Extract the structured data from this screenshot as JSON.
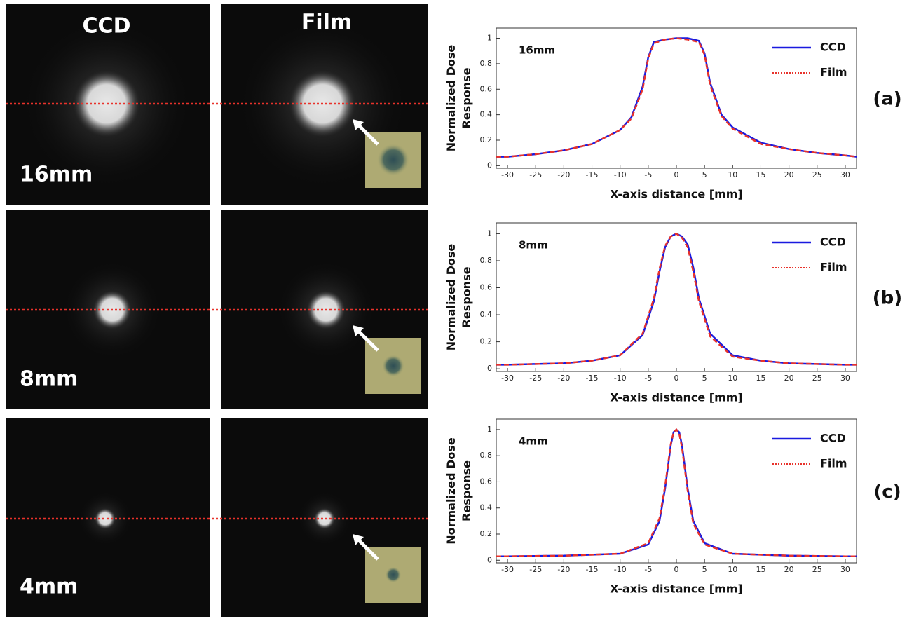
{
  "images": {
    "columns": [
      "CCD",
      "Film"
    ],
    "rows": [
      "16mm",
      "8mm",
      "4mm"
    ]
  },
  "chart_data": [
    {
      "type": "line",
      "title": "16mm",
      "panel": "(a)",
      "ylabel": [
        "Normalized Dose",
        "Response"
      ],
      "xlabel": "X-axis distance [mm]",
      "x": [
        -32,
        -30,
        -25,
        -20,
        -15,
        -10,
        -8,
        -6,
        -5,
        -4,
        -2,
        0,
        2,
        4,
        5,
        6,
        8,
        10,
        15,
        20,
        25,
        30,
        32
      ],
      "series": [
        {
          "name": "CCD",
          "color": "#1a1adf",
          "style": "solid",
          "values": [
            0.07,
            0.07,
            0.09,
            0.12,
            0.17,
            0.28,
            0.38,
            0.62,
            0.85,
            0.97,
            0.99,
            1.0,
            1.0,
            0.98,
            0.88,
            0.65,
            0.4,
            0.3,
            0.18,
            0.13,
            0.1,
            0.08,
            0.07
          ]
        },
        {
          "name": "Film",
          "color": "#e8322b",
          "style": "dashed",
          "values": [
            0.07,
            0.07,
            0.09,
            0.12,
            0.17,
            0.28,
            0.37,
            0.6,
            0.84,
            0.96,
            0.99,
            1.0,
            0.99,
            0.97,
            0.87,
            0.63,
            0.39,
            0.29,
            0.17,
            0.13,
            0.1,
            0.08,
            0.07
          ]
        }
      ],
      "xlim": [
        -32,
        32
      ],
      "xticks": [
        -30,
        -25,
        -20,
        -15,
        -10,
        -5,
        0,
        5,
        10,
        15,
        20,
        25,
        30
      ],
      "ylim": [
        -0.02,
        1.08
      ],
      "yticks": [
        0,
        0.2,
        0.4,
        0.6,
        0.8,
        1
      ],
      "legend": "upper right"
    },
    {
      "type": "line",
      "title": "8mm",
      "panel": "(b)",
      "ylabel": [
        "Normalized Dose",
        "Response"
      ],
      "xlabel": "X-axis distance [mm]",
      "x": [
        -32,
        -30,
        -25,
        -20,
        -15,
        -10,
        -6,
        -4,
        -3,
        -2,
        -1,
        0,
        1,
        2,
        3,
        4,
        6,
        10,
        15,
        20,
        25,
        30,
        32
      ],
      "series": [
        {
          "name": "CCD",
          "color": "#1a1adf",
          "style": "solid",
          "values": [
            0.03,
            0.03,
            0.035,
            0.04,
            0.06,
            0.1,
            0.25,
            0.5,
            0.72,
            0.9,
            0.98,
            1.0,
            0.98,
            0.92,
            0.75,
            0.52,
            0.26,
            0.1,
            0.06,
            0.04,
            0.035,
            0.03,
            0.03
          ]
        },
        {
          "name": "Film",
          "color": "#e8322b",
          "style": "dashed",
          "values": [
            0.03,
            0.03,
            0.035,
            0.04,
            0.06,
            0.1,
            0.26,
            0.52,
            0.74,
            0.91,
            0.98,
            1.0,
            0.97,
            0.9,
            0.72,
            0.5,
            0.24,
            0.09,
            0.06,
            0.04,
            0.035,
            0.03,
            0.03
          ]
        }
      ],
      "xlim": [
        -32,
        32
      ],
      "xticks": [
        -30,
        -25,
        -20,
        -15,
        -10,
        -5,
        0,
        5,
        10,
        15,
        20,
        25,
        30
      ],
      "ylim": [
        -0.02,
        1.08
      ],
      "yticks": [
        0,
        0.2,
        0.4,
        0.6,
        0.8,
        1
      ],
      "legend": "upper right"
    },
    {
      "type": "line",
      "title": "4mm",
      "panel": "(c)",
      "ylabel": [
        "Normalized Dose",
        "Response"
      ],
      "xlabel": "X-axis distance [mm]",
      "x": [
        -32,
        -30,
        -20,
        -10,
        -5,
        -3,
        -2,
        -1,
        -0.5,
        0,
        0.5,
        1,
        2,
        3,
        5,
        10,
        20,
        30,
        32
      ],
      "series": [
        {
          "name": "CCD",
          "color": "#1a1adf",
          "style": "solid",
          "values": [
            0.03,
            0.03,
            0.035,
            0.05,
            0.12,
            0.3,
            0.55,
            0.88,
            0.98,
            1.0,
            0.98,
            0.88,
            0.55,
            0.3,
            0.13,
            0.05,
            0.035,
            0.03,
            0.03
          ]
        },
        {
          "name": "Film",
          "color": "#e8322b",
          "style": "dashed",
          "values": [
            0.03,
            0.03,
            0.035,
            0.05,
            0.13,
            0.32,
            0.57,
            0.89,
            0.98,
            1.0,
            0.97,
            0.86,
            0.53,
            0.28,
            0.12,
            0.05,
            0.035,
            0.03,
            0.03
          ]
        }
      ],
      "xlim": [
        -32,
        32
      ],
      "xticks": [
        -30,
        -25,
        -20,
        -15,
        -10,
        -5,
        0,
        5,
        10,
        15,
        20,
        25,
        30
      ],
      "ylim": [
        -0.02,
        1.08
      ],
      "yticks": [
        0,
        0.2,
        0.4,
        0.6,
        0.8,
        1
      ],
      "legend": "upper right"
    }
  ]
}
